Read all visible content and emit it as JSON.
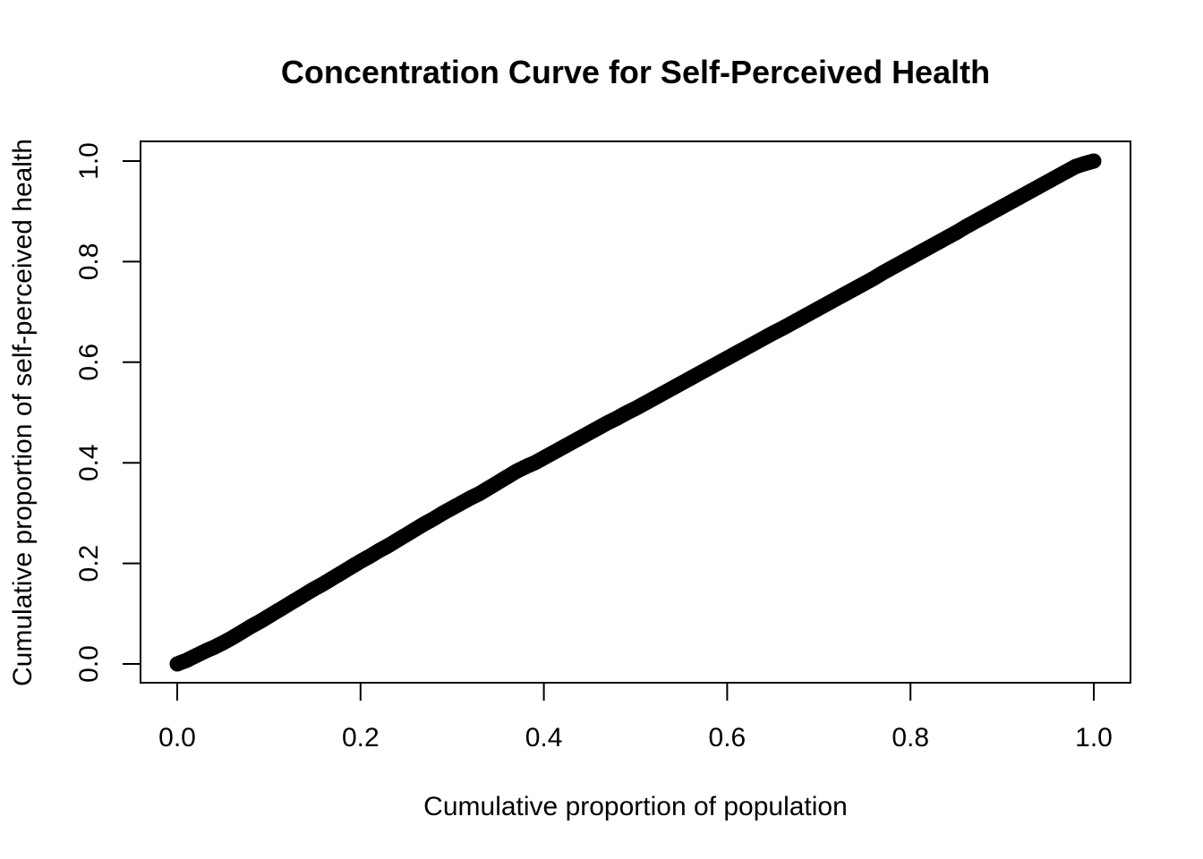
{
  "chart_data": {
    "type": "scatter",
    "title": "Concentration Curve for Self-Perceived Health",
    "xlabel": "Cumulative proportion of population",
    "ylabel": "Cumulative proportion of self-perceived health",
    "xlim": [
      0.0,
      1.0
    ],
    "ylim": [
      0.0,
      1.0
    ],
    "x_ticks": [
      "0.0",
      "0.2",
      "0.4",
      "0.6",
      "0.8",
      "1.0"
    ],
    "y_ticks": [
      "0.0",
      "0.2",
      "0.4",
      "0.6",
      "0.8",
      "1.0"
    ],
    "grid": false,
    "legend": "none",
    "marker_color": "#000000",
    "series": [
      {
        "x": [
          0.0,
          0.01,
          0.02,
          0.03,
          0.04,
          0.05,
          0.06,
          0.07,
          0.08,
          0.09,
          0.1,
          0.11,
          0.12,
          0.13,
          0.14,
          0.15,
          0.16,
          0.17,
          0.18,
          0.19,
          0.2,
          0.21,
          0.22,
          0.23,
          0.24,
          0.25,
          0.26,
          0.27,
          0.28,
          0.29,
          0.3,
          0.31,
          0.32,
          0.33,
          0.34,
          0.35,
          0.36,
          0.37,
          0.38,
          0.39,
          0.4,
          0.41,
          0.42,
          0.43,
          0.44,
          0.45,
          0.46,
          0.47,
          0.48,
          0.49,
          0.5,
          0.51,
          0.52,
          0.53,
          0.54,
          0.55,
          0.56,
          0.57,
          0.58,
          0.59,
          0.6,
          0.61,
          0.62,
          0.63,
          0.64,
          0.65,
          0.66,
          0.67,
          0.68,
          0.69,
          0.7,
          0.71,
          0.72,
          0.73,
          0.74,
          0.75,
          0.76,
          0.77,
          0.78,
          0.79,
          0.8,
          0.81,
          0.82,
          0.83,
          0.84,
          0.85,
          0.86,
          0.87,
          0.88,
          0.89,
          0.9,
          0.91,
          0.92,
          0.93,
          0.94,
          0.95,
          0.96,
          0.97,
          0.98,
          0.99,
          1.0
        ],
        "y": [
          0.0,
          0.007,
          0.016,
          0.025,
          0.033,
          0.042,
          0.052,
          0.063,
          0.074,
          0.084,
          0.095,
          0.106,
          0.117,
          0.128,
          0.139,
          0.15,
          0.16,
          0.171,
          0.182,
          0.193,
          0.204,
          0.214,
          0.225,
          0.235,
          0.246,
          0.257,
          0.268,
          0.279,
          0.289,
          0.3,
          0.31,
          0.32,
          0.33,
          0.339,
          0.35,
          0.361,
          0.372,
          0.383,
          0.392,
          0.4,
          0.41,
          0.42,
          0.43,
          0.44,
          0.45,
          0.46,
          0.47,
          0.48,
          0.489,
          0.499,
          0.508,
          0.518,
          0.528,
          0.538,
          0.548,
          0.558,
          0.568,
          0.578,
          0.588,
          0.598,
          0.608,
          0.618,
          0.628,
          0.638,
          0.648,
          0.658,
          0.667,
          0.677,
          0.687,
          0.697,
          0.707,
          0.717,
          0.727,
          0.737,
          0.747,
          0.757,
          0.767,
          0.778,
          0.788,
          0.798,
          0.808,
          0.818,
          0.828,
          0.838,
          0.848,
          0.858,
          0.869,
          0.879,
          0.889,
          0.899,
          0.909,
          0.919,
          0.929,
          0.939,
          0.949,
          0.959,
          0.969,
          0.979,
          0.989,
          0.995,
          1.0
        ]
      }
    ]
  }
}
